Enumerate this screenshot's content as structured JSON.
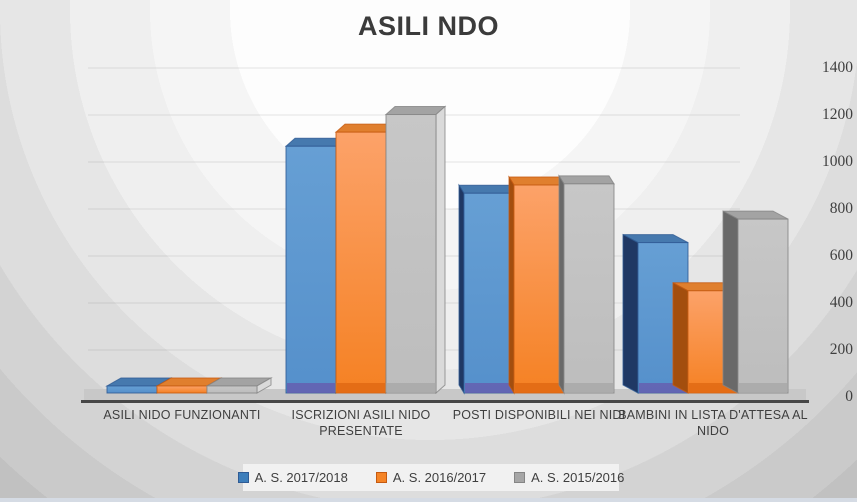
{
  "title": "ASILI NDO",
  "colors": {
    "background_outer": "#c1c1c1",
    "background_center": "#fdfdfd",
    "title_text": "#3b3b3b",
    "axis_text": "#3f3f3f",
    "legend_strip": "#f1f1f1",
    "floor": "#c8c8c8",
    "floor_front_edge": "#474747"
  },
  "chart_data": {
    "type": "bar",
    "projection": "3d",
    "title": "ASILI NDO",
    "xlabel": "",
    "ylabel": "",
    "ylim": [
      0,
      1400
    ],
    "yticks": [
      0,
      200,
      400,
      600,
      800,
      1000,
      1200,
      1400
    ],
    "grid": true,
    "legend_position": "bottom",
    "categories": [
      "ASILI NIDO FUNZIONANTI",
      "ISCRIZIONI ASILI NIDO PRESENTATE",
      "POSTI DISPONIBILI NEI NIDI",
      "BAMBINI IN LISTA D'ATTESA AL NIDO"
    ],
    "series": [
      {
        "name": "A. S. 2017/2018",
        "color": "#3d7ebb",
        "values": [
          30,
          1050,
          850,
          640
        ],
        "palette": {
          "front_top": "#669fd4",
          "front_bottom": "#5590cb",
          "top": "#4679ae",
          "side_light": "#8fb8e0",
          "side_dark": "#1f3864",
          "edge": "#2f5b94",
          "strip": "#655fb0"
        }
      },
      {
        "name": "A. S. 2016/2017",
        "color": "#f58426",
        "values": [
          30,
          1110,
          885,
          435
        ],
        "palette": {
          "front_top": "#fca269",
          "front_bottom": "#f58123",
          "top": "#e07f2e",
          "side_light": "#fcb37e",
          "side_dark": "#a34e0e",
          "edge": "#c55a11",
          "strip": "#e06a14"
        }
      },
      {
        "name": "A. S. 2015/2016",
        "color": "#a6a6a6",
        "values": [
          30,
          1185,
          890,
          740
        ],
        "palette": {
          "front_top": "#c7c7c7",
          "front_bottom": "#bdbdbd",
          "top": "#a3a3a3",
          "side_light": "#dadada",
          "side_dark": "#696969",
          "edge": "#858585",
          "strip": "#a9a9a9"
        }
      }
    ]
  }
}
